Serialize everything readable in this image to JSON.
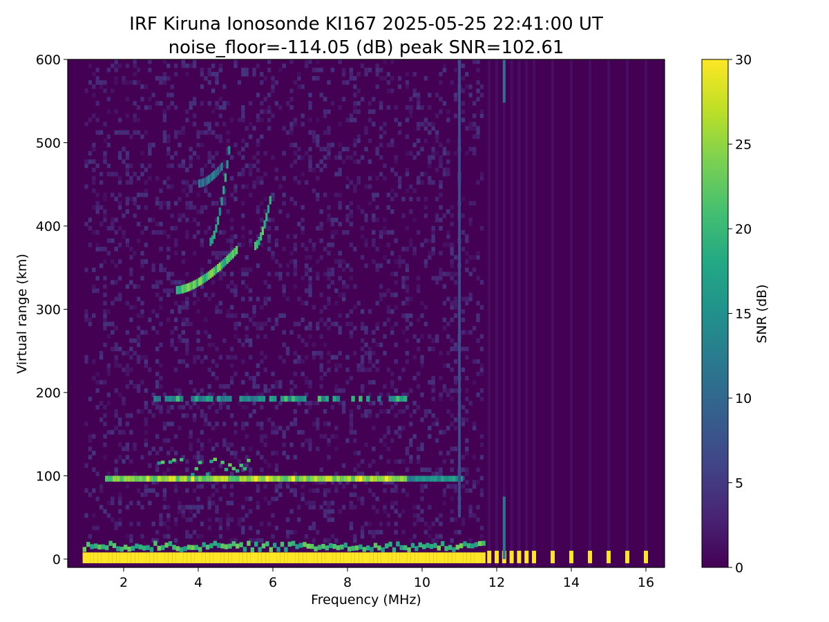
{
  "chart_data": {
    "type": "heatmap",
    "title": "IRF Kiruna Ionosonde KI167 2025-05-25 22:41:00  UT",
    "subtitle": "noise_floor=-114.05 (dB) peak SNR=102.61",
    "xlabel": "Frequency (MHz)",
    "ylabel": "Virtual range (km)",
    "xlim": [
      0.5,
      16.5
    ],
    "ylim": [
      -10,
      600
    ],
    "x_ticks": [
      2,
      4,
      6,
      8,
      10,
      12,
      14,
      16
    ],
    "y_ticks": [
      0,
      100,
      200,
      300,
      400,
      500,
      600
    ],
    "x_tick_labels": [
      "2",
      "4",
      "6",
      "8",
      "10",
      "12",
      "14",
      "16"
    ],
    "y_tick_labels": [
      "0",
      "100",
      "200",
      "300",
      "400",
      "500",
      "600"
    ],
    "colorbar": {
      "label": "SNR (dB)",
      "range": [
        0,
        30
      ],
      "ticks": [
        0,
        5,
        10,
        15,
        20,
        25,
        30
      ],
      "tick_labels": [
        "0",
        "5",
        "10",
        "15",
        "20",
        "25",
        "30"
      ],
      "colormap": "viridis"
    },
    "background_color": "#440154",
    "features": [
      {
        "name": "ground-clutter",
        "x_range": [
          0.9,
          11.6
        ],
        "range_km": [
          -5,
          18
        ],
        "snr": 30
      },
      {
        "name": "e-layer-echo",
        "x_range": [
          1.5,
          11.0
        ],
        "range_km": 97,
        "snr": 28
      },
      {
        "name": "es-second-hop",
        "x_range": [
          2.8,
          9.5
        ],
        "range_km": 193,
        "snr": 20
      },
      {
        "name": "f-layer-trace-1",
        "x_range": [
          3.4,
          5.0
        ],
        "range_km": [
          322,
          370
        ],
        "snr": 24
      },
      {
        "name": "f-layer-trace-2",
        "x_range": [
          4.3,
          4.8
        ],
        "range_km": [
          380,
          490
        ],
        "snr": 20
      },
      {
        "name": "f-layer-trace-3",
        "x_range": [
          5.5,
          5.9
        ],
        "range_km": [
          375,
          430
        ],
        "snr": 21
      },
      {
        "name": "interference-line",
        "x": 11.0,
        "range_km": [
          50,
          600
        ],
        "snr": 7
      },
      {
        "name": "interference-line",
        "x": 12.2,
        "range_km": [
          0,
          600
        ],
        "snr": 11
      }
    ],
    "sparse_columns_x": [
      11.8,
      12.0,
      12.2,
      12.4,
      12.6,
      12.8,
      13.0,
      13.5,
      14.0,
      14.5,
      15.0,
      15.5,
      16.0
    ]
  }
}
